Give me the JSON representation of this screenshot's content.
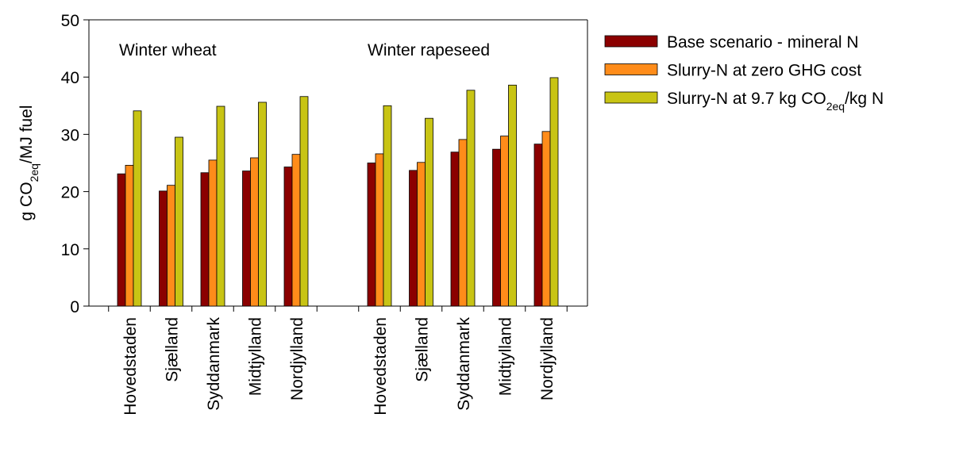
{
  "chart_data": {
    "type": "bar",
    "ylabel": [
      "g CO",
      "2eq",
      "/MJ fuel"
    ],
    "annotations": [
      "Winter wheat",
      "Winter rapeseed"
    ],
    "categories": [
      "Hovedstaden",
      "Sjælland",
      "Syddanmark",
      "Midtjylland",
      "Nordjylland",
      null,
      "Hovedstaden",
      "Sjælland",
      "Syddanmark",
      "Midtjylland",
      "Nordjylland"
    ],
    "series": [
      {
        "name": "Base scenario - mineral N",
        "color": "#8b0000",
        "values": [
          23.1,
          20.1,
          23.3,
          23.6,
          24.3,
          null,
          25.0,
          23.7,
          26.9,
          27.4,
          28.3
        ]
      },
      {
        "name": "Slurry-N at zero GHG cost",
        "color": "#ff8c1a",
        "values": [
          24.6,
          21.1,
          25.5,
          25.9,
          26.5,
          null,
          26.6,
          25.1,
          29.1,
          29.7,
          30.5
        ]
      },
      {
        "name": [
          "Slurry-N at 9.7 kg CO",
          "2eq",
          "/kg N"
        ],
        "color": "#c8c414",
        "values": [
          34.1,
          29.5,
          34.9,
          35.6,
          36.6,
          null,
          35.0,
          32.8,
          37.7,
          38.6,
          39.9
        ]
      }
    ],
    "ylim": [
      0,
      50
    ],
    "yticks": [
      0,
      10,
      20,
      30,
      40,
      50
    ]
  }
}
